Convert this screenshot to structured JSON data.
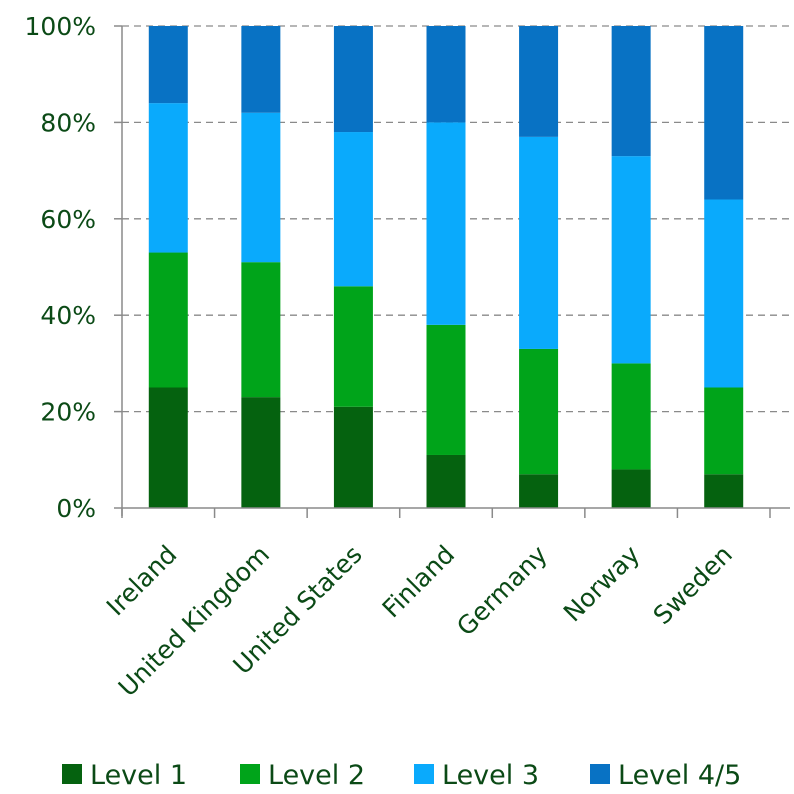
{
  "chart_data": {
    "type": "bar",
    "stacked": true,
    "percent": true,
    "categories": [
      "Ireland",
      "United Kingdom",
      "United States",
      "Finland",
      "Germany",
      "Norway",
      "Sweden"
    ],
    "series": [
      {
        "name": "Level 1",
        "color": "#05620f",
        "values": [
          25,
          23,
          21,
          11,
          7,
          8,
          7
        ]
      },
      {
        "name": "Level 2",
        "color": "#00a41a",
        "values": [
          28,
          28,
          25,
          27,
          26,
          22,
          18
        ]
      },
      {
        "name": "Level 3",
        "color": "#0aaafc",
        "values": [
          31,
          31,
          32,
          42,
          44,
          43,
          39
        ]
      },
      {
        "name": "Level 4/5",
        "color": "#0872c4",
        "values": [
          16,
          18,
          22,
          20,
          23,
          27,
          36
        ]
      }
    ],
    "yticks": [
      "0%",
      "20%",
      "40%",
      "60%",
      "80%",
      "100%"
    ],
    "ylim": [
      0,
      100
    ],
    "grid": true,
    "legend_position": "bottom"
  }
}
